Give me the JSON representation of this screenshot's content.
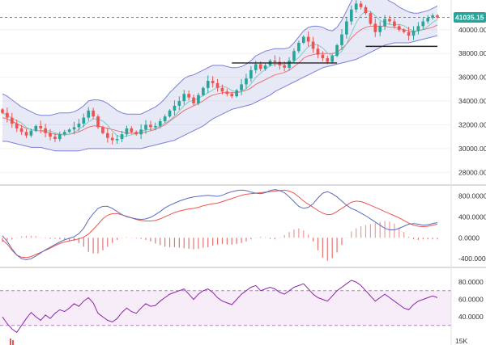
{
  "chart_data": [
    {
      "type": "candlestick",
      "panel": "price",
      "last_price_label": "41035.15",
      "ylim": [
        27000,
        42500
      ],
      "yticks": [
        {
          "v": 28000,
          "label": "28000.00"
        },
        {
          "v": 30000,
          "label": "30000.00"
        },
        {
          "v": 32000,
          "label": "32000.00"
        },
        {
          "v": 34000,
          "label": "34000.00"
        },
        {
          "v": 36000,
          "label": "36000.00"
        },
        {
          "v": 38000,
          "label": "38000.00"
        },
        {
          "v": 40000,
          "label": "40000.00"
        }
      ],
      "close": [
        33000,
        32600,
        32100,
        31700,
        31400,
        31100,
        31500,
        31900,
        31700,
        31300,
        31000,
        30800,
        31200,
        31400,
        31600,
        31800,
        32100,
        32600,
        33200,
        32700,
        31800,
        31300,
        30900,
        30700,
        30800,
        31200,
        31700,
        31400,
        31200,
        31600,
        32000,
        31800,
        31900,
        32300,
        32700,
        33200,
        33600,
        34000,
        34600,
        34300,
        33800,
        34500,
        35100,
        35700,
        35500,
        35100,
        34800,
        34600,
        34400,
        34900,
        35400,
        35900,
        36600,
        37100,
        36700,
        37000,
        37400,
        37300,
        37000,
        36800,
        37400,
        38200,
        38900,
        39400,
        39000,
        38400,
        37900,
        37600,
        37300,
        37800,
        38700,
        39600,
        40700,
        41700,
        42200,
        41900,
        41400,
        40500,
        39800,
        40300,
        40900,
        40700,
        40300,
        40000,
        39800,
        39500,
        39900,
        40300,
        40700,
        41000,
        41200,
        41035
      ],
      "bollinger": {
        "upper": [
          34600,
          34400,
          34100,
          33800,
          33500,
          33300,
          33100,
          32900,
          32800,
          32800,
          32800,
          32900,
          33000,
          33000,
          33000,
          33100,
          33300,
          33600,
          34000,
          34100,
          34100,
          34000,
          33800,
          33500,
          33200,
          33000,
          32900,
          32900,
          32900,
          32900,
          33100,
          33300,
          33500,
          33800,
          34200,
          34700,
          35100,
          35500,
          35900,
          36100,
          36200,
          36400,
          36600,
          36800,
          37000,
          37000,
          37000,
          36900,
          36800,
          36800,
          36900,
          37100,
          37400,
          37800,
          38000,
          38200,
          38300,
          38400,
          38400,
          38400,
          38500,
          38900,
          39400,
          39900,
          40200,
          40300,
          40300,
          40200,
          40000,
          39900,
          40200,
          40800,
          41600,
          42400,
          43000,
          43300,
          43400,
          43300,
          43100,
          42900,
          42700,
          42400,
          42200,
          41900,
          41700,
          41500,
          41400,
          41400,
          41500,
          41600,
          41800,
          42000
        ],
        "middle": [
          32600,
          32500,
          32300,
          32100,
          31900,
          31700,
          31600,
          31500,
          31500,
          31400,
          31300,
          31200,
          31200,
          31200,
          31200,
          31300,
          31400,
          31600,
          31800,
          31900,
          31900,
          31800,
          31700,
          31600,
          31500,
          31400,
          31300,
          31300,
          31300,
          31300,
          31400,
          31500,
          31600,
          31800,
          32000,
          32300,
          32600,
          32900,
          33200,
          33400,
          33600,
          33800,
          34000,
          34300,
          34500,
          34600,
          34700,
          34700,
          34700,
          34700,
          34800,
          34900,
          35100,
          35400,
          35600,
          35800,
          36000,
          36200,
          36300,
          36400,
          36600,
          36900,
          37200,
          37600,
          37800,
          37900,
          38000,
          38000,
          38000,
          38000,
          38100,
          38400,
          38800,
          39300,
          39700,
          40000,
          40200,
          40300,
          40300,
          40300,
          40300,
          40200,
          40200,
          40100,
          40000,
          39900,
          39800,
          39900,
          40000,
          40100,
          40200,
          40400
        ],
        "lower": [
          30600,
          30600,
          30500,
          30400,
          30300,
          30200,
          30100,
          30100,
          30100,
          30000,
          29900,
          29800,
          29800,
          29800,
          29800,
          29800,
          29800,
          29900,
          30000,
          30000,
          30000,
          30000,
          30000,
          30000,
          30000,
          30000,
          30000,
          30000,
          30000,
          30000,
          30100,
          30200,
          30300,
          30400,
          30500,
          30600,
          30700,
          30900,
          31100,
          31300,
          31500,
          31700,
          31900,
          32200,
          32500,
          32700,
          32900,
          33100,
          33300,
          33400,
          33500,
          33600,
          33700,
          33900,
          34100,
          34300,
          34500,
          34800,
          35000,
          35200,
          35400,
          35600,
          35800,
          36000,
          36200,
          36400,
          36600,
          36800,
          36900,
          37000,
          37100,
          37200,
          37300,
          37400,
          37500,
          37700,
          37900,
          38100,
          38300,
          38500,
          38700,
          38800,
          38900,
          38900,
          38900,
          38900,
          39000,
          39100,
          39200,
          39300,
          39400,
          39500
        ]
      },
      "horizontal_lines": [
        {
          "y": 37200,
          "x_from_index": 48,
          "x_to_index": 70
        },
        {
          "y": 38600,
          "x_from_index": 76,
          "x_to_index": 91
        }
      ]
    },
    {
      "type": "line",
      "panel": "macd",
      "ylim": [
        -520,
        960
      ],
      "yticks": [
        {
          "v": 800,
          "label": "800.0000"
        },
        {
          "v": 400,
          "label": "400.0000"
        },
        {
          "v": 0,
          "label": "0.0000"
        },
        {
          "v": -400,
          "label": "-400.0000"
        }
      ],
      "series": [
        {
          "values": [
            -40,
            -120,
            -240,
            -330,
            -370,
            -380,
            -360,
            -320,
            -280,
            -240,
            -200,
            -150,
            -110,
            -80,
            -60,
            -40,
            -20,
            10,
            70,
            160,
            260,
            360,
            430,
            460,
            460,
            440,
            410,
            380,
            350,
            330,
            320,
            320,
            330,
            360,
            400,
            440,
            480,
            510,
            530,
            550,
            560,
            580,
            610,
            630,
            650,
            660,
            690,
            720,
            750,
            780,
            810,
            830,
            840,
            850,
            860,
            870,
            880,
            890,
            900,
            910,
            890,
            850,
            780,
            700,
            640,
            580,
            520,
            470,
            440,
            450,
            500,
            560,
            620,
            680,
            700,
            690,
            660,
            620,
            580,
            540,
            500,
            460,
            420,
            380,
            330,
            280,
            240,
            220,
            210,
            220,
            240,
            260
          ]
        },
        {
          "values": [
            40,
            -70,
            -210,
            -330,
            -400,
            -420,
            -400,
            -350,
            -290,
            -230,
            -180,
            -130,
            -80,
            -40,
            -10,
            20,
            80,
            180,
            340,
            460,
            560,
            600,
            600,
            560,
            500,
            440,
            400,
            380,
            360,
            350,
            360,
            390,
            440,
            500,
            570,
            620,
            660,
            700,
            730,
            760,
            780,
            790,
            800,
            810,
            800,
            790,
            810,
            850,
            880,
            900,
            910,
            900,
            870,
            850,
            840,
            860,
            900,
            920,
            900,
            860,
            780,
            690,
            600,
            560,
            580,
            650,
            760,
            850,
            880,
            840,
            780,
            700,
            620,
            560,
            520,
            470,
            420,
            360,
            300,
            240,
            180,
            150,
            150,
            180,
            220,
            260,
            270,
            260,
            240,
            250,
            270,
            290
          ]
        },
        {
          "type": "histogram",
          "values": [
            -80,
            -50,
            -30,
            0,
            30,
            40,
            40,
            30,
            10,
            -10,
            -20,
            -20,
            -30,
            -40,
            -50,
            -60,
            -100,
            -170,
            -270,
            -300,
            -300,
            -240,
            -170,
            -100,
            -40,
            0,
            10,
            0,
            -10,
            -20,
            -40,
            -70,
            -110,
            -140,
            -170,
            -180,
            -180,
            -190,
            -200,
            -210,
            -220,
            -210,
            -190,
            -180,
            -150,
            -130,
            -120,
            -130,
            -130,
            -120,
            -100,
            -70,
            -30,
            0,
            20,
            10,
            -20,
            -30,
            0,
            50,
            110,
            160,
            180,
            140,
            60,
            -70,
            -240,
            -380,
            -440,
            -390,
            -280,
            -140,
            0,
            120,
            180,
            220,
            240,
            260,
            280,
            300,
            320,
            310,
            270,
            200,
            110,
            20,
            -30,
            -40,
            -30,
            -30,
            -30,
            -30
          ]
        }
      ]
    },
    {
      "type": "line",
      "panel": "rsi",
      "ylim": [
        14,
        94
      ],
      "yticks": [
        {
          "v": 80,
          "label": "80.0000"
        },
        {
          "v": 60,
          "label": "60.0000"
        },
        {
          "v": 40,
          "label": "40.0000"
        }
      ],
      "band": [
        30,
        70
      ],
      "series": [
        {
          "values": [
            40,
            32,
            26,
            22,
            30,
            38,
            45,
            40,
            36,
            42,
            38,
            44,
            48,
            46,
            50,
            55,
            52,
            58,
            62,
            56,
            44,
            40,
            36,
            34,
            38,
            45,
            50,
            46,
            44,
            50,
            55,
            52,
            53,
            58,
            62,
            66,
            68,
            70,
            72,
            66,
            60,
            66,
            70,
            72,
            68,
            62,
            58,
            56,
            54,
            60,
            66,
            70,
            74,
            76,
            70,
            72,
            74,
            72,
            68,
            66,
            70,
            74,
            76,
            78,
            72,
            66,
            62,
            60,
            58,
            64,
            70,
            74,
            78,
            82,
            80,
            76,
            70,
            64,
            58,
            62,
            66,
            62,
            58,
            54,
            50,
            48,
            54,
            58,
            60,
            62,
            64,
            62
          ]
        }
      ]
    }
  ],
  "volume_label": "15K"
}
